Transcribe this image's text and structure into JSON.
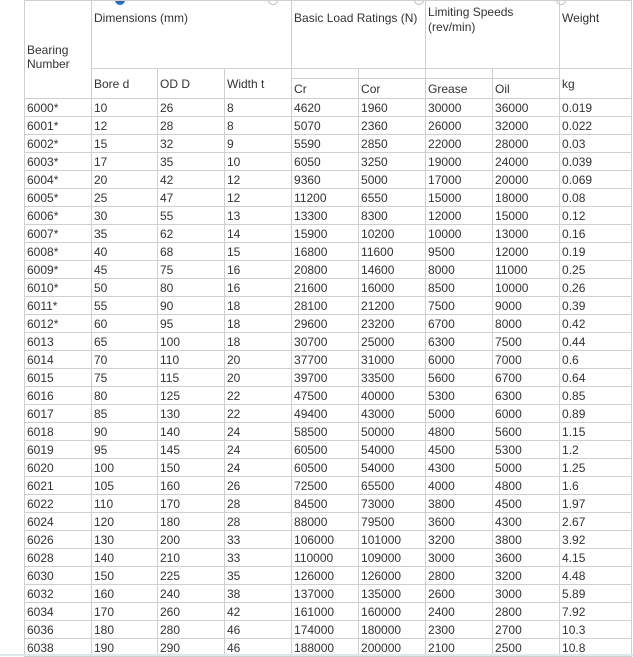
{
  "header": {
    "bearing_number": "Bearing Number",
    "dimensions": "Dimensions (mm)",
    "load_ratings": "Basic Load Ratings (N)",
    "limiting_speeds": "Limiting Speeds (rev/min)",
    "weight": "Weight",
    "bore": "Bore d",
    "od": "OD D",
    "width": "Width t",
    "cr": "Cr",
    "cor": "Cor",
    "grease": "Grease",
    "oil": "Oil",
    "kg": "kg"
  },
  "rows": [
    [
      "6000*",
      "10",
      "26",
      "8",
      "4620",
      "1960",
      "30000",
      "36000",
      "0.019"
    ],
    [
      "6001*",
      "12",
      "28",
      "8",
      "5070",
      "2360",
      "26000",
      "32000",
      "0.022"
    ],
    [
      "6002*",
      "15",
      "32",
      "9",
      "5590",
      "2850",
      "22000",
      "28000",
      "0.03"
    ],
    [
      "6003*",
      "17",
      "35",
      "10",
      "6050",
      "3250",
      "19000",
      "24000",
      "0.039"
    ],
    [
      "6004*",
      "20",
      "42",
      "12",
      "9360",
      "5000",
      "17000",
      "20000",
      "0.069"
    ],
    [
      "6005*",
      "25",
      "47",
      "12",
      "11200",
      "6550",
      "15000",
      "18000",
      "0.08"
    ],
    [
      "6006*",
      "30",
      "55",
      "13",
      "13300",
      "8300",
      "12000",
      "15000",
      "0.12"
    ],
    [
      "6007*",
      "35",
      "62",
      "14",
      "15900",
      "10200",
      "10000",
      "13000",
      "0.16"
    ],
    [
      "6008*",
      "40",
      "68",
      "15",
      "16800",
      "11600",
      "9500",
      "12000",
      "0.19"
    ],
    [
      "6009*",
      "45",
      "75",
      "16",
      "20800",
      "14600",
      "8000",
      "11000",
      "0.25"
    ],
    [
      "6010*",
      "50",
      "80",
      "16",
      "21600",
      "16000",
      "8500",
      "10000",
      "0.26"
    ],
    [
      "6011*",
      "55",
      "90",
      "18",
      "28100",
      "21200",
      "7500",
      "9000",
      "0.39"
    ],
    [
      "6012*",
      "60",
      "95",
      "18",
      "29600",
      "23200",
      "6700",
      "8000",
      "0.42"
    ],
    [
      "6013",
      "65",
      "100",
      "18",
      "30700",
      "25000",
      "6300",
      "7500",
      "0.44"
    ],
    [
      "6014",
      "70",
      "110",
      "20",
      "37700",
      "31000",
      "6000",
      "7000",
      "0.6"
    ],
    [
      "6015",
      "75",
      "115",
      "20",
      "39700",
      "33500",
      "5600",
      "6700",
      "0.64"
    ],
    [
      "6016",
      "80",
      "125",
      "22",
      "47500",
      "40000",
      "5300",
      "6300",
      "0.85"
    ],
    [
      "6017",
      "85",
      "130",
      "22",
      "49400",
      "43000",
      "5000",
      "6000",
      "0.89"
    ],
    [
      "6018",
      "90",
      "140",
      "24",
      "58500",
      "50000",
      "4800",
      "5600",
      "1.15"
    ],
    [
      "6019",
      "95",
      "145",
      "24",
      "60500",
      "54000",
      "4500",
      "5300",
      "1.2"
    ],
    [
      "6020",
      "100",
      "150",
      "24",
      "60500",
      "54000",
      "4300",
      "5000",
      "1.25"
    ],
    [
      "6021",
      "105",
      "160",
      "26",
      "72500",
      "65500",
      "4000",
      "4800",
      "1.6"
    ],
    [
      "6022",
      "110",
      "170",
      "28",
      "84500",
      "73000",
      "3800",
      "4500",
      "1.97"
    ],
    [
      "6024",
      "120",
      "180",
      "28",
      "88000",
      "79500",
      "3600",
      "4300",
      "2.67"
    ],
    [
      "6026",
      "130",
      "200",
      "33",
      "106000",
      "101000",
      "3200",
      "3800",
      "3.92"
    ],
    [
      "6028",
      "140",
      "210",
      "33",
      "110000",
      "109000",
      "3000",
      "3600",
      "4.15"
    ],
    [
      "6030",
      "150",
      "225",
      "35",
      "126000",
      "126000",
      "2800",
      "3200",
      "4.48"
    ],
    [
      "6032",
      "160",
      "240",
      "38",
      "137000",
      "135000",
      "2600",
      "3000",
      "5.89"
    ],
    [
      "6034",
      "170",
      "260",
      "42",
      "161000",
      "160000",
      "2400",
      "2800",
      "7.92"
    ],
    [
      "6036",
      "180",
      "280",
      "46",
      "174000",
      "180000",
      "2300",
      "2700",
      "10.3"
    ],
    [
      "6038",
      "190",
      "290",
      "46",
      "188000",
      "200000",
      "2100",
      "2500",
      "10.8"
    ]
  ],
  "column_keys": [
    "bearing-number",
    "bore",
    "od",
    "width",
    "cr",
    "cor",
    "grease",
    "oil",
    "weight"
  ]
}
